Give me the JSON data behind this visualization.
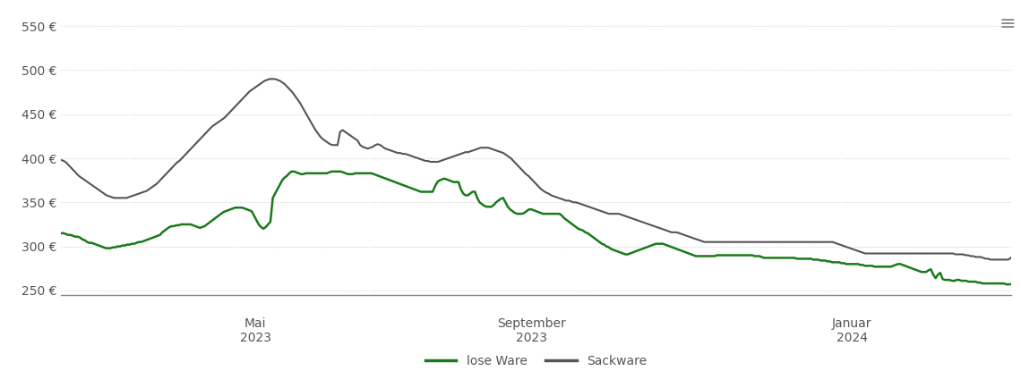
{
  "ylabel_ticks": [
    "250 €",
    "300 €",
    "350 €",
    "400 €",
    "450 €",
    "500 €",
    "550 €"
  ],
  "ytick_vals": [
    250,
    300,
    350,
    400,
    450,
    500,
    550
  ],
  "ylim": [
    245,
    562
  ],
  "xlim_days": [
    0,
    430
  ],
  "x_tick_positions": [
    88,
    213,
    358
  ],
  "x_tick_labels_top": [
    "Mai",
    "September",
    "Januar"
  ],
  "x_tick_labels_bottom": [
    "2023",
    "2023",
    "2024"
  ],
  "legend_labels": [
    "lose Ware",
    "Sackware"
  ],
  "lose_ware_color": "#1a7a1a",
  "sackware_color": "#555555",
  "background_color": "#ffffff",
  "grid_color": "#d0d0d0",
  "lose_ware": [
    315,
    315,
    314,
    313,
    313,
    312,
    311,
    311,
    310,
    308,
    307,
    305,
    304,
    304,
    303,
    302,
    301,
    300,
    299,
    298,
    298,
    298,
    299,
    299,
    300,
    300,
    301,
    301,
    302,
    302,
    303,
    303,
    304,
    305,
    305,
    306,
    307,
    308,
    309,
    310,
    311,
    312,
    313,
    316,
    318,
    320,
    322,
    323,
    323,
    324,
    324,
    325,
    325,
    325,
    325,
    325,
    324,
    323,
    322,
    321,
    322,
    323,
    325,
    327,
    329,
    331,
    333,
    335,
    337,
    339,
    340,
    341,
    342,
    343,
    344,
    344,
    344,
    344,
    343,
    342,
    341,
    340,
    335,
    330,
    325,
    322,
    320,
    322,
    325,
    328,
    355,
    360,
    365,
    370,
    375,
    378,
    380,
    383,
    385,
    385,
    384,
    383,
    382,
    382,
    383,
    383,
    383,
    383,
    383,
    383,
    383,
    383,
    383,
    383,
    384,
    385,
    385,
    385,
    385,
    385,
    384,
    383,
    382,
    382,
    382,
    383,
    383,
    383,
    383,
    383,
    383,
    383,
    383,
    382,
    381,
    380,
    379,
    378,
    377,
    376,
    375,
    374,
    373,
    372,
    371,
    370,
    369,
    368,
    367,
    366,
    365,
    364,
    363,
    362,
    362,
    362,
    362,
    362,
    362,
    368,
    373,
    375,
    376,
    377,
    376,
    375,
    374,
    373,
    373,
    373,
    365,
    360,
    358,
    358,
    360,
    362,
    362,
    355,
    350,
    348,
    346,
    345,
    345,
    345,
    347,
    350,
    352,
    354,
    355,
    350,
    345,
    342,
    340,
    338,
    337,
    337,
    337,
    338,
    340,
    342,
    342,
    341,
    340,
    339,
    338,
    337,
    337,
    337,
    337,
    337,
    337,
    337,
    337,
    335,
    332,
    330,
    328,
    326,
    324,
    322,
    320,
    319,
    318,
    316,
    315,
    313,
    311,
    309,
    307,
    305,
    303,
    302,
    300,
    299,
    297,
    296,
    295,
    294,
    293,
    292,
    291,
    291,
    292,
    293,
    294,
    295,
    296,
    297,
    298,
    299,
    300,
    301,
    302,
    303,
    303,
    303,
    303,
    302,
    301,
    300,
    299,
    298,
    297,
    296,
    295,
    294,
    293,
    292,
    291,
    290,
    289,
    289,
    289,
    289,
    289,
    289,
    289,
    289,
    289,
    290,
    290,
    290,
    290,
    290,
    290,
    290,
    290,
    290,
    290,
    290,
    290,
    290,
    290,
    290,
    290,
    289,
    289,
    289,
    288,
    287,
    287,
    287,
    287,
    287,
    287,
    287,
    287,
    287,
    287,
    287,
    287,
    287,
    287,
    286,
    286,
    286,
    286,
    286,
    286,
    286,
    285,
    285,
    285,
    284,
    284,
    284,
    283,
    283,
    282,
    282,
    282,
    282,
    281,
    281,
    280,
    280,
    280,
    280,
    280,
    280,
    279,
    279,
    278,
    278,
    278,
    278,
    277,
    277,
    277,
    277,
    277,
    277,
    277,
    277,
    278,
    279,
    280,
    280,
    279,
    278,
    277,
    276,
    275,
    274,
    273,
    272,
    271,
    271,
    271,
    273,
    274,
    268,
    264,
    268,
    270,
    263,
    262,
    262,
    262,
    261,
    261,
    262,
    262,
    261,
    261,
    261,
    260,
    260,
    260,
    260,
    259,
    259,
    258,
    258,
    258,
    258,
    258,
    258,
    258,
    258,
    258,
    258,
    257,
    257,
    257
  ],
  "sackware": [
    398,
    397,
    395,
    392,
    389,
    386,
    383,
    380,
    378,
    376,
    374,
    372,
    370,
    368,
    366,
    364,
    362,
    360,
    358,
    357,
    356,
    355,
    355,
    355,
    355,
    355,
    355,
    356,
    357,
    358,
    359,
    360,
    361,
    362,
    363,
    365,
    367,
    369,
    371,
    374,
    377,
    380,
    383,
    386,
    389,
    392,
    395,
    397,
    400,
    403,
    406,
    409,
    412,
    415,
    418,
    421,
    424,
    427,
    430,
    433,
    436,
    438,
    440,
    442,
    444,
    446,
    449,
    452,
    455,
    458,
    461,
    464,
    467,
    470,
    473,
    476,
    478,
    480,
    482,
    484,
    486,
    488,
    489,
    490,
    490,
    490,
    489,
    488,
    486,
    484,
    481,
    478,
    475,
    471,
    467,
    463,
    458,
    453,
    448,
    443,
    438,
    433,
    429,
    425,
    422,
    420,
    418,
    416,
    415,
    415,
    415,
    430,
    432,
    430,
    428,
    426,
    424,
    422,
    420,
    415,
    413,
    412,
    411,
    412,
    413,
    415,
    416,
    415,
    413,
    411,
    410,
    409,
    408,
    407,
    406,
    406,
    405,
    405,
    404,
    403,
    402,
    401,
    400,
    399,
    398,
    397,
    397,
    396,
    396,
    396,
    396,
    397,
    398,
    399,
    400,
    401,
    402,
    403,
    404,
    405,
    406,
    407,
    407,
    408,
    409,
    410,
    411,
    412,
    412,
    412,
    412,
    411,
    410,
    409,
    408,
    407,
    406,
    404,
    402,
    400,
    397,
    394,
    391,
    388,
    385,
    382,
    380,
    377,
    374,
    371,
    368,
    365,
    363,
    361,
    360,
    358,
    357,
    356,
    355,
    354,
    353,
    352,
    352,
    351,
    350,
    350,
    349,
    348,
    347,
    346,
    345,
    344,
    343,
    342,
    341,
    340,
    339,
    338,
    337,
    337,
    337,
    337,
    337,
    336,
    335,
    334,
    333,
    332,
    331,
    330,
    329,
    328,
    327,
    326,
    325,
    324,
    323,
    322,
    321,
    320,
    319,
    318,
    317,
    316,
    316,
    316,
    315,
    314,
    313,
    312,
    311,
    310,
    309,
    308,
    307,
    306,
    305,
    305,
    305,
    305,
    305,
    305,
    305,
    305,
    305,
    305,
    305,
    305,
    305,
    305,
    305,
    305,
    305,
    305,
    305,
    305,
    305,
    305,
    305,
    305,
    305,
    305,
    305,
    305,
    305,
    305,
    305,
    305,
    305,
    305,
    305,
    305,
    305,
    305,
    305,
    305,
    305,
    305,
    305,
    305,
    305,
    305,
    305,
    305,
    305,
    305,
    305,
    305,
    304,
    303,
    302,
    301,
    300,
    299,
    298,
    297,
    296,
    295,
    294,
    293,
    292,
    292,
    292,
    292,
    292,
    292,
    292,
    292,
    292,
    292,
    292,
    292,
    292,
    292,
    292,
    292,
    292,
    292,
    292,
    292,
    292,
    292,
    292,
    292,
    292,
    292,
    292,
    292,
    292,
    292,
    292,
    292,
    292,
    292,
    292,
    292,
    291,
    291,
    291,
    291,
    290,
    290,
    289,
    289,
    288,
    288,
    288,
    287,
    286,
    286,
    285,
    285,
    285,
    285,
    285,
    285,
    285,
    285,
    287
  ]
}
